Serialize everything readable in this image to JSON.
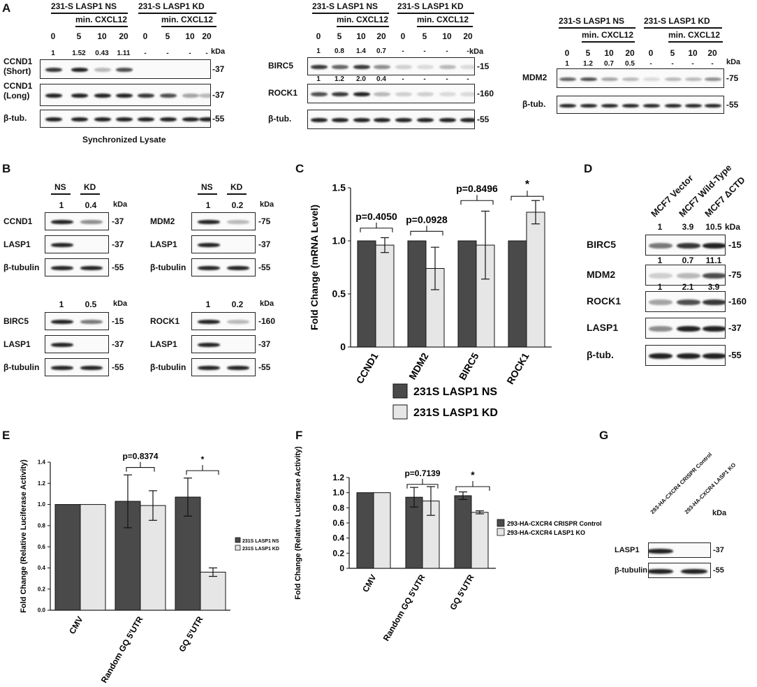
{
  "panelA": {
    "letter": "A",
    "blot1": {
      "group_ns": "231-S LASP1 NS",
      "group_kd": "231-S LASP1 KD",
      "treat": "min. CXCL12",
      "times": [
        "0",
        "5",
        "10",
        "20",
        "0",
        "5",
        "10",
        "20"
      ],
      "quant": [
        "1",
        "1.52",
        "0.43",
        "1.11",
        "-",
        "-",
        "-",
        "-"
      ],
      "kda": "kDa",
      "rows": [
        {
          "label": "CCND1\n(Short)",
          "marker": "-37",
          "bands": [
            0.9,
            1.0,
            0.3,
            0.8,
            0,
            0,
            0,
            0
          ]
        },
        {
          "label": "CCND1\n(Long)",
          "marker": "-37",
          "bands": [
            1,
            1,
            1,
            1,
            0.9,
            0.8,
            0.4,
            0.3
          ]
        },
        {
          "label": "β-tub.",
          "marker": "-55",
          "bands": [
            1,
            1,
            1,
            1,
            1,
            1,
            1,
            1
          ]
        }
      ],
      "caption": "Synchronized Lysate"
    },
    "blot2": {
      "group_ns": "231-S LASP1 NS",
      "group_kd": "231-S LASP1 KD",
      "treat": "min. CXCL12",
      "times": [
        "0",
        "5",
        "10",
        "20",
        "0",
        "5",
        "10",
        "20"
      ],
      "quant1": [
        "1",
        "0.8",
        "1.4",
        "0.7",
        "-",
        "-",
        "-",
        "-"
      ],
      "quant2": [
        "1",
        "1.2",
        "2.0",
        "0.4",
        "-",
        "-",
        "-",
        "-"
      ],
      "kda": "kDa",
      "rows": [
        {
          "label": "BIRC5",
          "marker": "-15",
          "bands": [
            0.9,
            0.7,
            0.9,
            0.5,
            0.2,
            0.1,
            0.3,
            0.1
          ]
        },
        {
          "label": "ROCK1",
          "marker": "-160",
          "bands": [
            0.8,
            0.9,
            1.0,
            0.3,
            0.2,
            0.2,
            0.1,
            0.1
          ]
        },
        {
          "label": "β-tub.",
          "marker": "-55",
          "bands": [
            1,
            1,
            1,
            1,
            1,
            1,
            1,
            1
          ]
        }
      ]
    },
    "blot3": {
      "group_ns": "231-S LASP1 NS",
      "group_kd": "231-S LASP1 KD",
      "treat": "min. CXCL12",
      "times": [
        "0",
        "5",
        "10",
        "20",
        "0",
        "5",
        "10",
        "20"
      ],
      "quant": [
        "1",
        "1.2",
        "0.7",
        "0.5",
        "-",
        "-",
        "-",
        "-"
      ],
      "kda": "kDa",
      "rows": [
        {
          "label": "MDM2",
          "marker": "-75",
          "bands": [
            0.7,
            0.8,
            0.4,
            0.3,
            0.1,
            0.3,
            0.3,
            0.5
          ]
        },
        {
          "label": "β-tub.",
          "marker": "-55",
          "bands": [
            1,
            1,
            1,
            1,
            1,
            1,
            1,
            1
          ]
        }
      ]
    }
  },
  "panelB": {
    "letter": "B",
    "ns": "NS",
    "kd": "KD",
    "kda": "kDa",
    "blots": [
      {
        "quant": [
          "1",
          "0.4"
        ],
        "rows": [
          {
            "label": "CCND1",
            "marker": "-37",
            "bands": [
              1,
              0.5
            ]
          },
          {
            "label": "LASP1",
            "marker": "-37",
            "bands": [
              1,
              0
            ]
          },
          {
            "label": "β-tubulin",
            "marker": "-55",
            "bands": [
              1,
              1
            ]
          }
        ]
      },
      {
        "quant": [
          "1",
          "0.2"
        ],
        "rows": [
          {
            "label": "MDM2",
            "marker": "-75",
            "bands": [
              1,
              0.3
            ]
          },
          {
            "label": "LASP1",
            "marker": "-37",
            "bands": [
              1,
              0
            ]
          },
          {
            "label": "β-tubulin",
            "marker": "-55",
            "bands": [
              1,
              1
            ]
          }
        ]
      },
      {
        "quant": [
          "1",
          "0.5"
        ],
        "rows": [
          {
            "label": "BIRC5",
            "marker": "-15",
            "bands": [
              1,
              0.6
            ]
          },
          {
            "label": "LASP1",
            "marker": "-37",
            "bands": [
              1,
              0
            ]
          },
          {
            "label": "β-tubulin",
            "marker": "-55",
            "bands": [
              1,
              1
            ]
          }
        ]
      },
      {
        "quant": [
          "1",
          "0.2"
        ],
        "rows": [
          {
            "label": "ROCK1",
            "marker": "-160",
            "bands": [
              1,
              0.3
            ]
          },
          {
            "label": "LASP1",
            "marker": "-37",
            "bands": [
              1,
              0
            ]
          },
          {
            "label": "β-tubulin",
            "marker": "-55",
            "bands": [
              1,
              1
            ]
          }
        ]
      }
    ]
  },
  "panelD": {
    "letter": "D",
    "lanes": [
      "MCF7 Vector",
      "MCF7 Wild-Type",
      "MCF7 ΔCTD"
    ],
    "kda": "kDa",
    "quant1": [
      "1",
      "3.9",
      "10.5"
    ],
    "quant2": [
      "1",
      "0.7",
      "11.1"
    ],
    "quant3": [
      "1",
      "2.1",
      "3.9"
    ],
    "rows": [
      {
        "label": "BIRC5",
        "marker": "-15",
        "bands": [
          0.6,
          0.9,
          1.0
        ]
      },
      {
        "label": "MDM2",
        "marker": "-75",
        "bands": [
          0.2,
          0.3,
          0.8
        ]
      },
      {
        "label": "ROCK1",
        "marker": "-160",
        "bands": [
          0.4,
          0.8,
          0.9
        ]
      },
      {
        "label": "LASP1",
        "marker": "-37",
        "bands": [
          0.5,
          1,
          1
        ]
      },
      {
        "label": "β-tub.",
        "marker": "-55",
        "bands": [
          1,
          1,
          1
        ]
      }
    ]
  },
  "panelG": {
    "letter": "G",
    "lanes": [
      "293-HA-CXCR4 CRISPR Control",
      "293-HA-CXCR4 LASP1 KO"
    ],
    "kda": "kDa",
    "rows": [
      {
        "label": "LASP1",
        "marker": "-37",
        "bands": [
          1,
          0
        ]
      },
      {
        "label": "β-tubulin",
        "marker": "-55",
        "bands": [
          1,
          1
        ]
      }
    ]
  },
  "colors": {
    "dark": "#4a4a4a",
    "light": "#e6e6e6",
    "band": "#222222"
  },
  "chart_data": [
    {
      "panel": "C",
      "type": "bar",
      "categories": [
        "CCND1",
        "MDM2",
        "BIRC5",
        "ROCK1"
      ],
      "series": [
        {
          "name": "231S LASP1 NS",
          "values": [
            1.0,
            1.0,
            1.0,
            1.0
          ],
          "err": [
            0,
            0,
            0,
            0
          ]
        },
        {
          "name": "231S LASP1 KD",
          "values": [
            0.96,
            0.74,
            0.96,
            1.27
          ],
          "err": [
            0.07,
            0.2,
            0.32,
            0.11
          ]
        }
      ],
      "ylabel": "Fold Change (mRNA Level)",
      "ylim": [
        0,
        1.5
      ],
      "yticks": [
        "0",
        "0.5",
        "1.0",
        "1.5"
      ],
      "annotations": [
        "p=0.4050",
        "p=0.0928",
        "p=0.8496",
        "*"
      ],
      "legend": "bottom"
    },
    {
      "panel": "E",
      "type": "bar",
      "categories": [
        "CMV",
        "Random GQ 5'UTR",
        "GQ 5'UTR"
      ],
      "series": [
        {
          "name": "231S LASP1 NS",
          "values": [
            1.0,
            1.03,
            1.07
          ],
          "err": [
            0,
            0.25,
            0.18
          ]
        },
        {
          "name": "231S LASP1 KD",
          "values": [
            1.0,
            0.99,
            0.36
          ],
          "err": [
            0,
            0.14,
            0.04
          ]
        }
      ],
      "ylabel": "Fold Change (Relative Luciferase Activity)",
      "ylim": [
        0,
        1.4
      ],
      "yticks": [
        "0.0",
        "0.2",
        "0.4",
        "0.6",
        "0.8",
        "1.0",
        "1.2",
        "1.4"
      ],
      "annotations": [
        "p=0.8374",
        "*"
      ],
      "legend": "right"
    },
    {
      "panel": "F",
      "type": "bar",
      "categories": [
        "CMV",
        "Random GQ 5'UTR",
        "GQ 5'UTR"
      ],
      "series": [
        {
          "name": "293-HA-CXCR4 CRISPR Control",
          "values": [
            1.0,
            0.94,
            0.96
          ],
          "err": [
            0,
            0.13,
            0.05
          ]
        },
        {
          "name": "293-HA-CXCR4 LASP1 KO",
          "values": [
            1.0,
            0.89,
            0.74
          ],
          "err": [
            0,
            0.19,
            0.02
          ]
        }
      ],
      "ylabel": "Fold Change (Relative Luciferase Activity)",
      "ylim": [
        0,
        1.2
      ],
      "yticks": [
        "0",
        "0.2",
        "0.4",
        "0.6",
        "0.8",
        "1.0",
        "1.2"
      ],
      "annotations": [
        "p=0.7139",
        "*"
      ],
      "legend": "right"
    }
  ]
}
